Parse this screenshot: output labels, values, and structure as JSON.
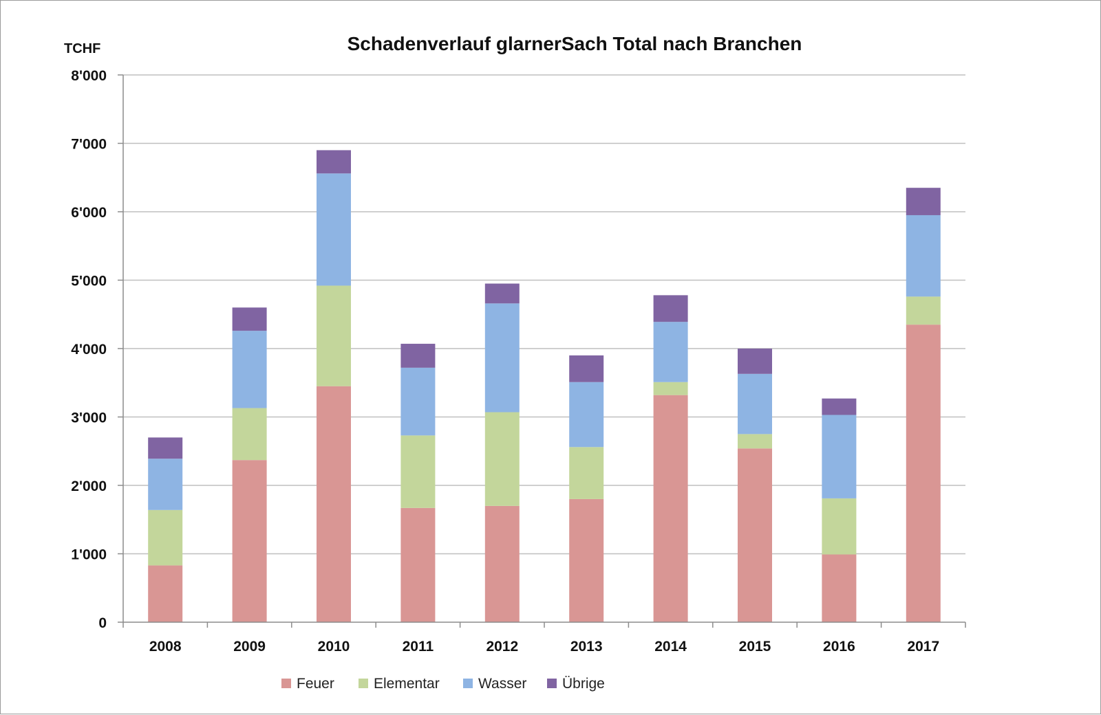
{
  "chart_data": {
    "type": "bar",
    "stacked": true,
    "title": "Schadenverlauf glarnerSach Total nach Branchen",
    "ylabel": "TCHF",
    "xlabel": "",
    "ylim": [
      0,
      8000
    ],
    "yticks": [
      0,
      1000,
      2000,
      3000,
      4000,
      5000,
      6000,
      7000,
      8000
    ],
    "ytick_labels": [
      "0",
      "1'000",
      "2'000",
      "3'000",
      "4'000",
      "5'000",
      "6'000",
      "7'000",
      "8'000"
    ],
    "grid": true,
    "legend_position": "bottom",
    "categories": [
      "2008",
      "2009",
      "2010",
      "2011",
      "2012",
      "2013",
      "2014",
      "2015",
      "2016",
      "2017"
    ],
    "series": [
      {
        "name": "Feuer",
        "color": "#d99694",
        "values": [
          830,
          2370,
          3450,
          1670,
          1700,
          1800,
          3320,
          2540,
          990,
          4350
        ]
      },
      {
        "name": "Elementar",
        "color": "#c3d69b",
        "values": [
          810,
          760,
          1470,
          1060,
          1370,
          760,
          190,
          210,
          820,
          410
        ]
      },
      {
        "name": "Wasser",
        "color": "#8eb4e3",
        "values": [
          750,
          1130,
          1640,
          990,
          1590,
          950,
          880,
          880,
          1220,
          1190
        ]
      },
      {
        "name": "Übrige",
        "color": "#8064a2",
        "values": [
          310,
          340,
          340,
          350,
          290,
          390,
          390,
          370,
          240,
          400
        ]
      }
    ]
  }
}
